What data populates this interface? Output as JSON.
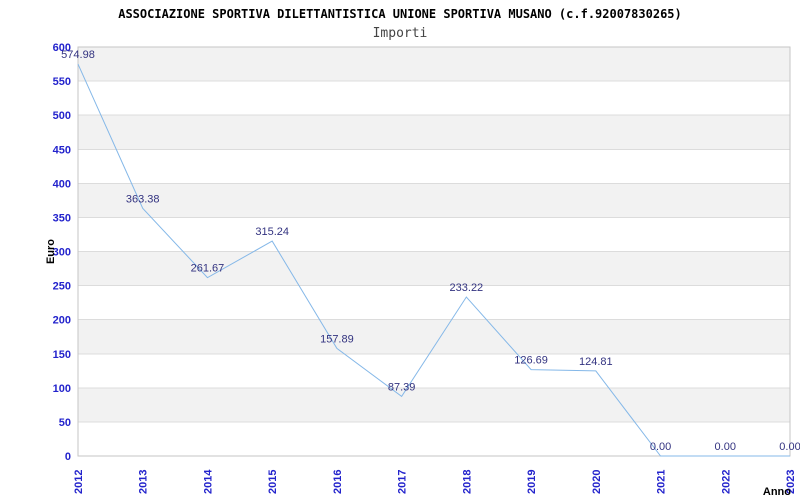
{
  "header": {
    "title": "ASSOCIAZIONE SPORTIVA DILETTANTISTICA UNIONE SPORTIVA MUSANO (c.f.92007830265)",
    "subtitle": "Importi"
  },
  "chart_data": {
    "type": "line",
    "title": "ASSOCIAZIONE SPORTIVA DILETTANTISTICA UNIONE SPORTIVA MUSANO (c.f.92007830265)",
    "subtitle": "Importi",
    "categories": [
      "2012",
      "2013",
      "2014",
      "2015",
      "2016",
      "2017",
      "2018",
      "2019",
      "2020",
      "2021",
      "2022",
      "2023"
    ],
    "values": [
      574.98,
      363.38,
      261.67,
      315.24,
      157.89,
      87.39,
      233.22,
      126.69,
      124.81,
      0.0,
      0.0,
      0.0
    ],
    "value_labels": [
      "574.98",
      "363.38",
      "261.67",
      "315.24",
      "157.89",
      "87.39",
      "233.22",
      "126.69",
      "124.81",
      "0.00",
      "0.00",
      "0.00"
    ],
    "xlabel": "Anno",
    "ylabel": "Euro",
    "ylim": [
      0,
      600
    ],
    "ytick_step": 50,
    "grid": true,
    "legend_position": "none",
    "colors": {
      "line": "#85b8e8",
      "value_label": "#333380",
      "tick_label": "#2323cc",
      "band": "#f2f2f2",
      "gridline": "#dcdcdc",
      "plot_border": "#c6c6c6",
      "axis_title": "#000000"
    }
  }
}
